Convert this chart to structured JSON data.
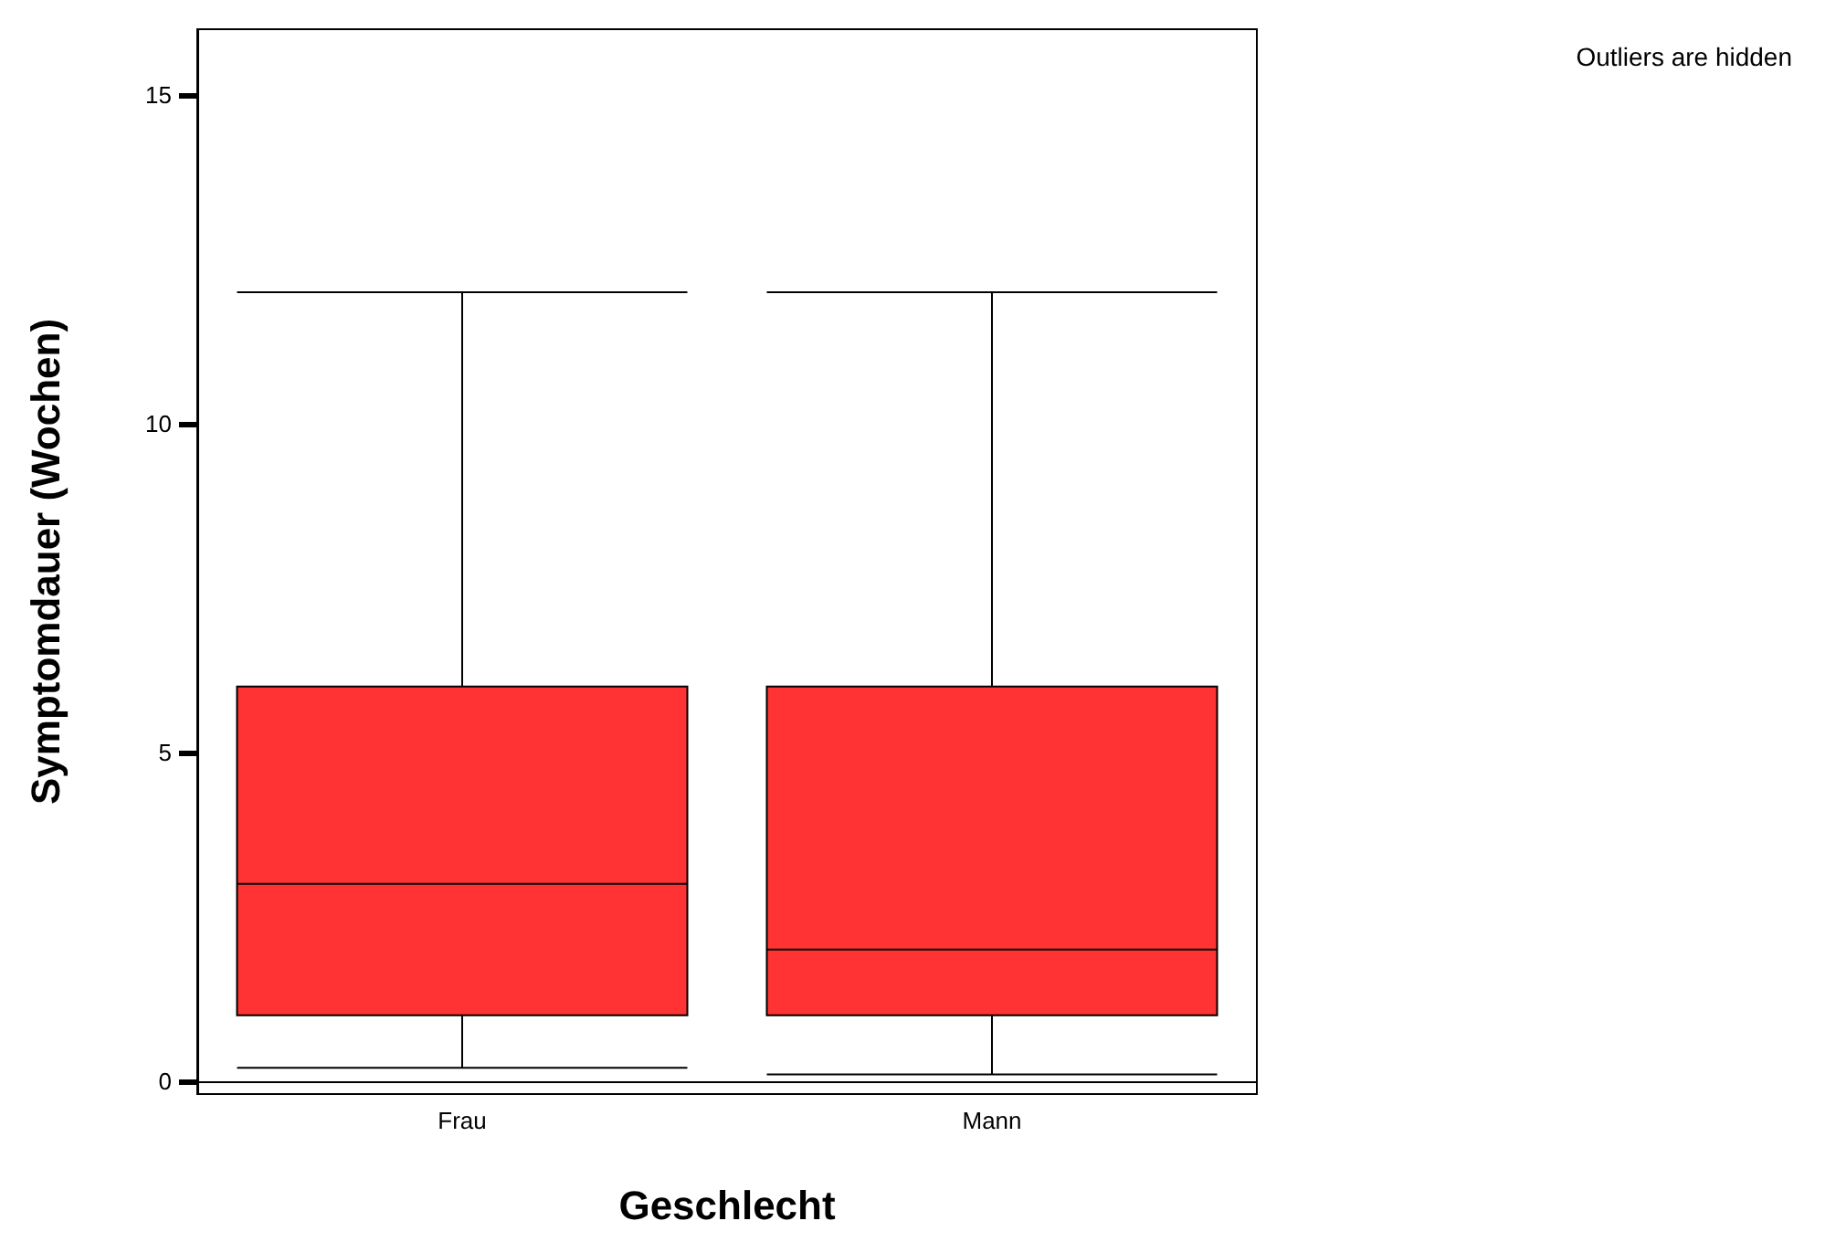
{
  "chart_data": {
    "type": "box",
    "xlabel": "Geschlecht",
    "ylabel": "Symptomdauer (Wochen)",
    "categories": [
      "Frau",
      "Mann"
    ],
    "color": "#ff3333",
    "boxes": [
      {
        "low": 0.2,
        "q1": 1,
        "median": 3,
        "q3": 6,
        "high": 12
      },
      {
        "low": 0.1,
        "q1": 1,
        "median": 2,
        "q3": 6,
        "high": 12
      }
    ],
    "ylim": [
      -0.2,
      16
    ],
    "yticks": [
      0,
      5,
      10,
      15
    ],
    "annotations": [
      "Outliers are hidden"
    ]
  }
}
